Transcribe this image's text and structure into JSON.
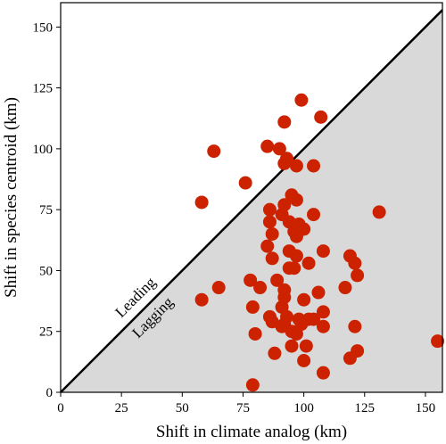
{
  "chart_data": {
    "type": "scatter",
    "title": "",
    "xlabel": "Shift in climate analog (km)",
    "ylabel": "Shift in species centroid (km)",
    "xlim": [
      0,
      157
    ],
    "ylim": [
      0,
      160
    ],
    "xticks": [
      0,
      25,
      50,
      75,
      100,
      125,
      150
    ],
    "yticks": [
      0,
      25,
      50,
      75,
      100,
      125,
      150
    ],
    "grid": false,
    "reference_line": "y = x",
    "region_labels": {
      "above": "Leading",
      "below": "Lagging"
    },
    "colors": {
      "point": "#cc2200",
      "lagging_fill": "#d9d9d9",
      "line": "#000000"
    },
    "series": [
      {
        "x": [
          99,
          92,
          107,
          63,
          90,
          85,
          93,
          97,
          92,
          104,
          76,
          58,
          131,
          95,
          97,
          92,
          86,
          91,
          104,
          86,
          94,
          98,
          100,
          96,
          97,
          87,
          85,
          94,
          97,
          108,
          87,
          96,
          94,
          102,
          119,
          121,
          122,
          89,
          78,
          82,
          117,
          65,
          58,
          92,
          92,
          106,
          79,
          91,
          100,
          108,
          86,
          87,
          93,
          98,
          102,
          92,
          91,
          95,
          104,
          121,
          108,
          99,
          97,
          80,
          95,
          119,
          122,
          88,
          101,
          100,
          108,
          155,
          79
        ],
        "y": [
          120,
          111,
          113,
          99,
          100,
          101,
          96,
          93,
          94,
          93,
          86,
          78,
          74,
          81,
          79,
          77,
          75,
          73,
          73,
          70,
          70,
          69,
          67,
          66,
          64,
          65,
          60,
          58,
          56,
          58,
          55,
          51,
          51,
          53,
          56,
          53,
          48,
          46,
          46,
          43,
          43,
          43,
          38,
          42,
          39,
          41,
          35,
          35,
          38,
          33,
          31,
          29,
          31,
          30,
          30,
          28,
          27,
          25,
          30,
          27,
          27,
          28,
          24,
          24,
          19,
          14,
          17,
          16,
          19,
          13,
          8,
          21,
          3
        ]
      }
    ]
  }
}
